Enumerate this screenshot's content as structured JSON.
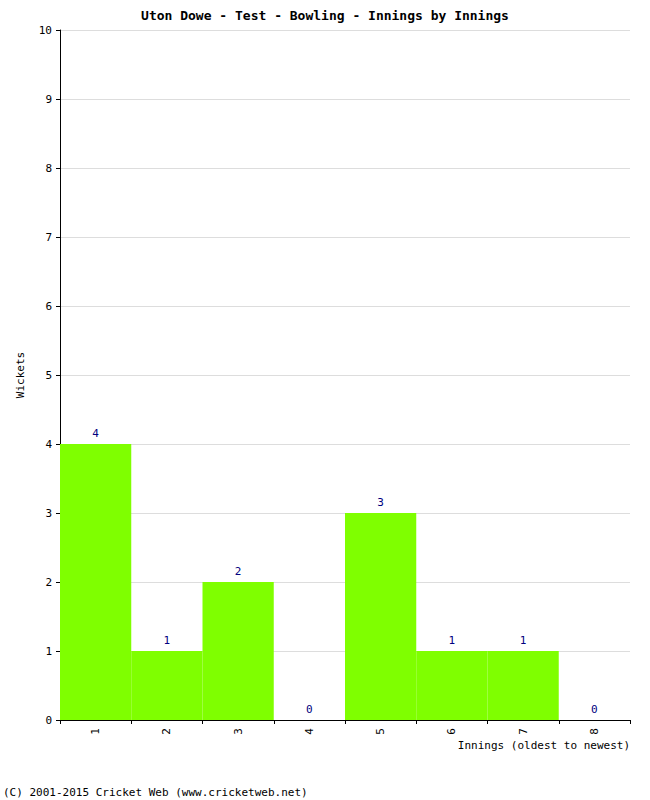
{
  "chart_data": {
    "type": "bar",
    "title": "Uton Dowe - Test - Bowling - Innings by Innings",
    "x_label": "Innings (oldest to newest)",
    "y_label": "Wickets",
    "categories": [
      "1",
      "2",
      "3",
      "4",
      "5",
      "6",
      "7",
      "8"
    ],
    "values": [
      4,
      1,
      2,
      0,
      3,
      1,
      1,
      0
    ],
    "color": "#7fff00",
    "ylim": [
      0,
      10
    ],
    "yticks": [
      0,
      1,
      2,
      3,
      4,
      5,
      6,
      7,
      8,
      9,
      10
    ],
    "grid": true,
    "data_labels": true,
    "annotations": [
      "(C) 2001-2015 Cricket Web (www.cricketweb.net)"
    ]
  }
}
